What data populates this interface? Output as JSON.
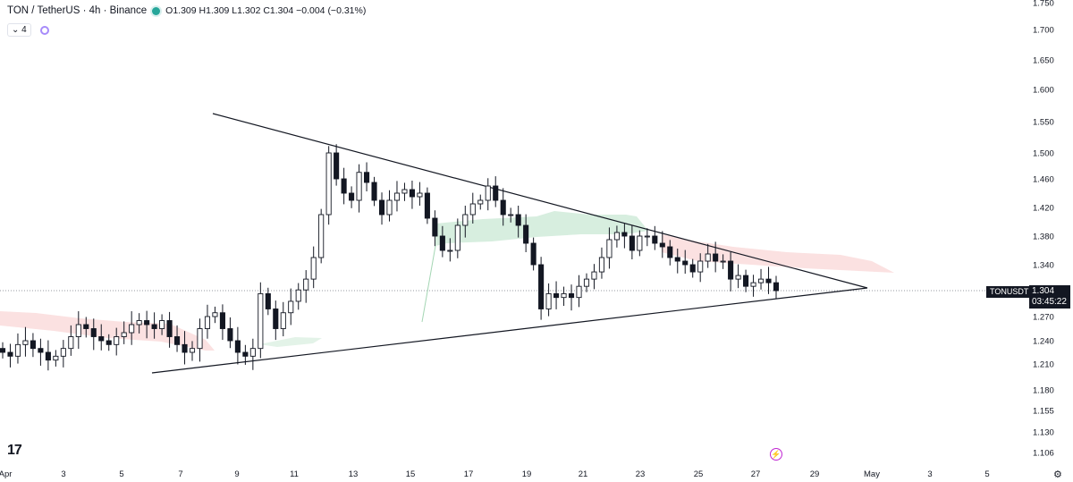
{
  "header": {
    "symbol": "TON / TetherUS · 4h · Binance",
    "ohlc": "O1.309  H1.309  L1.302  C1.304  −0.004 (−0.31%)",
    "interval_badge": "4",
    "status_color": "#26a69a"
  },
  "price_axis": {
    "symbol_tag": "TONUSDT",
    "last_price": "1.304",
    "countdown": "03:45:22"
  },
  "icons": [
    "tradingview-logo-icon",
    "flash-icon",
    "settings-icon",
    "chevron-down-icon",
    "indicator-icon"
  ],
  "logo_text": "17",
  "colors": {
    "up": "#ffffff",
    "down": "#131722",
    "cloud_bull": "#d7eedf",
    "cloud_bear": "#fbe1e1",
    "line": "#131722"
  },
  "chart_data": {
    "type": "candlestick",
    "title": "TON / TetherUS · 4h · Binance",
    "ylim": [
      1.09,
      1.75
    ],
    "y_ticks": [
      1.106,
      1.13,
      1.155,
      1.18,
      1.21,
      1.24,
      1.27,
      1.304,
      1.34,
      1.38,
      1.42,
      1.46,
      1.5,
      1.55,
      1.6,
      1.65,
      1.7,
      1.75
    ],
    "x_range": [
      "Apr 1",
      "May 6"
    ],
    "x_ticks": [
      "Apr",
      "3",
      "5",
      "7",
      "9",
      "11",
      "13",
      "15",
      "17",
      "19",
      "21",
      "23",
      "25",
      "27",
      "29",
      "May",
      "3",
      "5"
    ],
    "close_series": [
      1.225,
      1.22,
      1.235,
      1.24,
      1.23,
      1.225,
      1.215,
      1.22,
      1.23,
      1.245,
      1.26,
      1.255,
      1.245,
      1.24,
      1.235,
      1.245,
      1.25,
      1.26,
      1.265,
      1.26,
      1.255,
      1.265,
      1.245,
      1.235,
      1.225,
      1.23,
      1.255,
      1.27,
      1.275,
      1.255,
      1.24,
      1.225,
      1.22,
      1.23,
      1.3,
      1.28,
      1.255,
      1.275,
      1.29,
      1.305,
      1.32,
      1.35,
      1.41,
      1.5,
      1.46,
      1.44,
      1.43,
      1.47,
      1.455,
      1.43,
      1.41,
      1.43,
      1.44,
      1.445,
      1.435,
      1.44,
      1.405,
      1.38,
      1.36,
      1.36,
      1.395,
      1.41,
      1.425,
      1.43,
      1.45,
      1.43,
      1.41,
      1.41,
      1.395,
      1.37,
      1.34,
      1.28,
      1.3,
      1.295,
      1.3,
      1.295,
      1.31,
      1.32,
      1.33,
      1.35,
      1.375,
      1.385,
      1.38,
      1.36,
      1.38,
      1.38,
      1.37,
      1.365,
      1.35,
      1.345,
      1.34,
      1.33,
      1.345,
      1.355,
      1.345,
      1.345,
      1.32,
      1.325,
      1.31,
      1.315,
      1.32,
      1.315,
      1.304
    ],
    "trendlines": [
      {
        "name": "upper",
        "points": [
          [
            "Apr 8.2",
            1.56
          ],
          [
            "Apr 30.2",
            1.308
          ]
        ]
      },
      {
        "name": "lower",
        "points": [
          [
            "Apr 6.1",
            1.2
          ],
          [
            "Apr 30.2",
            1.308
          ]
        ]
      }
    ],
    "grid": false,
    "legend_position": "top-left"
  }
}
